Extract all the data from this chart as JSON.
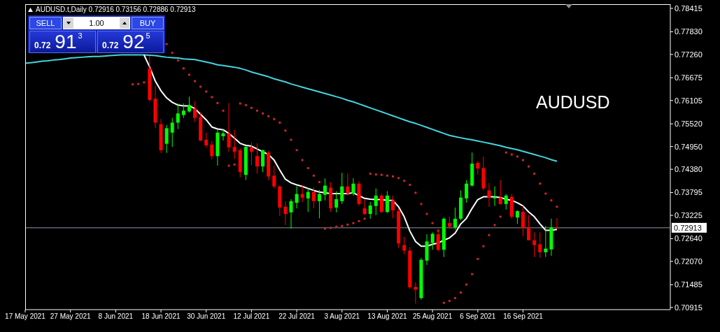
{
  "chart_data": {
    "type": "candlestick",
    "title": "AUDUSD.t,Daily 0.72916 0.73156 0.72886 0.72913",
    "annotations": [
      "AUDUSD",
      "SELL",
      "1.00",
      "BUY",
      "0.72",
      "91$^{3}$",
      "0.72",
      "92$^{5}$"
    ],
    "categories": [
      "17 May 2021",
      null,
      null,
      null,
      null,
      null,
      null,
      null,
      "27 May 2021",
      null,
      null,
      null,
      null,
      null,
      null,
      null,
      "8 Jun 2021",
      null,
      null,
      null,
      null,
      null,
      null,
      null,
      "18 Jun 2021",
      null,
      null,
      null,
      null,
      null,
      null,
      null,
      "30 Jun 2021",
      null,
      null,
      null,
      null,
      null,
      null,
      null,
      "12 Jul 2021",
      null,
      null,
      null,
      null,
      null,
      null,
      null,
      "22 Jul 2021",
      null,
      null,
      null,
      null,
      null,
      null,
      null,
      "3 Aug 2021",
      null,
      null,
      null,
      null,
      null,
      null,
      null,
      "13 Aug 2021",
      null,
      null,
      null,
      null,
      null,
      null,
      null,
      "25 Aug 2021",
      null,
      null,
      null,
      null,
      null,
      null,
      null,
      "6 Sep 2021",
      null,
      null,
      null,
      null,
      null,
      null,
      null,
      "16 Sep 2021",
      null,
      null,
      null,
      null,
      null,
      null
    ],
    "ohlc": [
      null,
      null,
      null,
      null,
      null,
      null,
      null,
      null,
      null,
      null,
      null,
      null,
      null,
      null,
      null,
      null,
      null,
      null,
      null,
      null,
      null,
      null,
      [
        0.7691,
        0.7723,
        0.7608,
        0.7612
      ],
      [
        0.7615,
        0.7647,
        0.7541,
        0.7555
      ],
      [
        0.7551,
        0.7564,
        0.7479,
        0.7486
      ],
      [
        0.7502,
        0.7549,
        0.7479,
        0.7541
      ],
      [
        0.753,
        0.7567,
        0.7494,
        0.7555
      ],
      [
        0.7555,
        0.7603,
        0.7539,
        0.7578
      ],
      [
        0.7574,
        0.7603,
        0.7567,
        0.7585
      ],
      [
        0.7583,
        0.762,
        0.758,
        0.7599
      ],
      [
        0.759,
        0.7608,
        0.7556,
        0.7567
      ],
      [
        0.7569,
        0.7581,
        0.7509,
        0.751
      ],
      [
        0.7512,
        0.753,
        0.7493,
        0.7498
      ],
      [
        0.75,
        0.7509,
        0.7463,
        0.7471
      ],
      [
        0.7471,
        0.7537,
        0.7447,
        0.753
      ],
      [
        0.7521,
        0.7539,
        0.751,
        0.7528
      ],
      [
        0.7528,
        0.7604,
        0.7482,
        0.7493
      ],
      [
        0.7494,
        0.7537,
        0.7464,
        0.7482
      ],
      [
        0.7486,
        0.7491,
        0.7418,
        0.7431
      ],
      [
        0.7424,
        0.7496,
        0.7411,
        0.7494
      ],
      [
        0.7493,
        0.7505,
        0.7448,
        0.7482
      ],
      [
        0.7471,
        0.7503,
        0.7427,
        0.7445
      ],
      [
        0.7445,
        0.7487,
        0.7431,
        0.7486
      ],
      [
        0.748,
        0.7484,
        0.7411,
        0.742
      ],
      [
        0.7422,
        0.7447,
        0.739,
        0.7395
      ],
      [
        0.7395,
        0.7397,
        0.7321,
        0.7342
      ],
      [
        0.7344,
        0.7358,
        0.7298,
        0.7326
      ],
      [
        0.733,
        0.7363,
        0.7289,
        0.7358
      ],
      [
        0.7354,
        0.7395,
        0.734,
        0.7376
      ],
      [
        0.7376,
        0.7399,
        0.7356,
        0.7367
      ],
      [
        0.7365,
        0.739,
        0.7331,
        0.7381
      ],
      [
        0.7381,
        0.7393,
        0.734,
        0.7358
      ],
      [
        0.7358,
        0.7386,
        0.7315,
        0.7376
      ],
      [
        0.7374,
        0.7415,
        0.736,
        0.7397
      ],
      [
        0.7392,
        0.7406,
        0.7331,
        0.734
      ],
      [
        0.7342,
        0.7383,
        0.733,
        0.7363
      ],
      [
        0.7358,
        0.7429,
        0.7351,
        0.7395
      ],
      [
        0.7395,
        0.7427,
        0.7372,
        0.7377
      ],
      [
        0.7377,
        0.7416,
        0.7372,
        0.7402
      ],
      [
        0.7402,
        0.7408,
        0.7346,
        0.7351
      ],
      [
        0.734,
        0.7362,
        0.7323,
        0.7326
      ],
      [
        0.7326,
        0.7356,
        0.7314,
        0.7347
      ],
      [
        0.7346,
        0.739,
        0.7323,
        0.7372
      ],
      [
        0.7372,
        0.7376,
        0.7328,
        0.7331
      ],
      [
        0.7331,
        0.7383,
        0.7328,
        0.7372
      ],
      [
        0.736,
        0.7372,
        0.7315,
        0.7335
      ],
      [
        0.7333,
        0.734,
        0.7241,
        0.7252
      ],
      [
        0.7248,
        0.7269,
        0.7225,
        0.7234
      ],
      [
        0.7234,
        0.7243,
        0.7138,
        0.7142
      ],
      [
        0.7143,
        0.7154,
        0.7101,
        0.7136
      ],
      [
        0.7115,
        0.7216,
        0.7111,
        0.7211
      ],
      [
        0.7209,
        0.7275,
        0.7198,
        0.7257
      ],
      [
        0.7253,
        0.728,
        0.7236,
        0.7276
      ],
      [
        0.7275,
        0.7287,
        0.7232,
        0.7236
      ],
      [
        0.7236,
        0.7317,
        0.7218,
        0.7314
      ],
      [
        0.7303,
        0.7319,
        0.7289,
        0.7294
      ],
      [
        0.7292,
        0.7342,
        0.7287,
        0.7314
      ],
      [
        0.7314,
        0.7385,
        0.731,
        0.7367
      ],
      [
        0.7365,
        0.7411,
        0.7354,
        0.7402
      ],
      [
        0.7397,
        0.748,
        0.7395,
        0.7452
      ],
      [
        0.7454,
        0.7459,
        0.7425,
        0.744
      ],
      [
        0.7441,
        0.747,
        0.7385,
        0.739
      ],
      [
        0.7385,
        0.7404,
        0.7344,
        0.7367
      ],
      [
        0.7365,
        0.7395,
        0.7346,
        0.7369
      ],
      [
        0.7367,
        0.7411,
        0.7349,
        0.7351
      ],
      [
        0.7351,
        0.7376,
        0.7337,
        0.7372
      ],
      [
        0.7369,
        0.7376,
        0.7314,
        0.7319
      ],
      [
        0.7317,
        0.7335,
        0.7301,
        0.7333
      ],
      [
        0.7331,
        0.7346,
        0.7271,
        0.7291
      ],
      [
        0.7292,
        0.7323,
        0.726,
        0.726
      ],
      [
        0.726,
        0.728,
        0.7218,
        0.7248
      ],
      [
        0.725,
        0.728,
        0.7216,
        0.723
      ],
      [
        0.723,
        0.7296,
        0.7218,
        0.7239
      ],
      [
        0.7237,
        0.7314,
        0.7221,
        0.7292
      ],
      [
        0.72916,
        0.73156,
        0.72886,
        0.72913
      ]
    ],
    "colors": [
      null,
      null,
      null,
      null,
      null,
      null,
      null,
      null,
      null,
      null,
      null,
      null,
      null,
      null,
      null,
      null,
      null,
      null,
      null,
      null,
      null,
      null,
      "#ff0000",
      "#ff0000",
      "#ff0000",
      "#00ff00",
      "#00ff00",
      "#00ff00",
      "#00ff00",
      "#00ff00",
      "#ff0000",
      "#ff0000",
      "#ff0000",
      "#ff0000",
      "#00ff00",
      "#00ff00",
      "#ff0000",
      "#ff0000",
      "#ff0000",
      "#00ff00",
      "#ff0000",
      "#ff0000",
      "#00ff00",
      "#ff0000",
      "#ff0000",
      "#ff0000",
      "#ff0000",
      "#00ff00",
      "#00ff00",
      "#ff0000",
      "#00ff00",
      "#ff0000",
      "#00ff00",
      "#00ff00",
      "#ff0000",
      "#00ff00",
      "#00ff00",
      "#ff0000",
      "#00ff00",
      "#ff0000",
      "#ff0000",
      "#00ff00",
      "#00ff00",
      "#ff0000",
      "#00ff00",
      "#ff0000",
      "#ff0000",
      "#ff0000",
      "#ff0000",
      "#ff0000",
      "#00ff00",
      "#00ff00",
      "#00ff00",
      "#ff0000",
      "#00ff00",
      "#ff0000",
      "#00ff00",
      "#00ff00",
      "#00ff00",
      "#00ff00",
      "#ff0000",
      "#ff0000",
      "#ff0000",
      "#00ff00",
      "#ff0000",
      "#00ff00",
      "#ff0000",
      "#00ff00",
      "#ff0000",
      "#ff0000",
      "#ff0000",
      "#ff0000",
      "#00ff00",
      "#00ff00",
      "#ff0000"
    ],
    "series": [
      {
        "type": "line",
        "color": "#45d4e0",
        "values": [
          0.7704,
          0.7705,
          0.7707,
          0.7709,
          0.771,
          0.7712,
          0.7713,
          0.7715,
          0.7717,
          0.7718,
          0.7719,
          0.772,
          0.7721,
          0.7721,
          0.7722,
          0.7723,
          0.7724,
          0.7725,
          0.7725,
          0.7725,
          0.7725,
          0.7725,
          0.7724,
          0.7723,
          0.7721,
          0.7719,
          0.7718,
          0.7717,
          0.7715,
          0.7714,
          0.7713,
          0.771,
          0.7707,
          0.7704,
          0.77,
          0.7698,
          0.7696,
          0.7694,
          0.7691,
          0.7687,
          0.7682,
          0.7678,
          0.7674,
          0.767,
          0.7665,
          0.7661,
          0.7657,
          0.7652,
          0.7648,
          0.7644,
          0.764,
          0.7636,
          0.7632,
          0.7628,
          0.7624,
          0.762,
          0.7616,
          0.7611,
          0.7607,
          0.7602,
          0.7597,
          0.7592,
          0.7587,
          0.7582,
          0.7577,
          0.7572,
          0.7567,
          0.7562,
          0.7557,
          0.7553,
          0.7548,
          0.7543,
          0.7538,
          0.7533,
          0.7528,
          0.7523,
          0.752,
          0.7517,
          0.7514,
          0.7512,
          0.7509,
          0.7506,
          0.7503,
          0.75,
          0.7497,
          0.7493,
          0.749,
          0.7487,
          0.7483,
          0.7479,
          0.7475,
          0.7471,
          0.7467,
          0.7462,
          0.7458
        ]
      },
      {
        "type": "line",
        "color": "#ffffff",
        "values": [
          null,
          null,
          null,
          null,
          null,
          null,
          null,
          null,
          null,
          null,
          null,
          null,
          null,
          null,
          null,
          null,
          null,
          null,
          null,
          null,
          null,
          0.7725,
          0.7695,
          0.7659,
          0.7635,
          0.7617,
          0.7606,
          0.7599,
          0.7597,
          0.7597,
          0.759,
          0.7576,
          0.7562,
          0.7544,
          0.7539,
          0.7537,
          0.7528,
          0.7516,
          0.7503,
          0.7498,
          0.7496,
          0.7489,
          0.7482,
          0.7475,
          0.7461,
          0.7436,
          0.7413,
          0.7404,
          0.7399,
          0.7395,
          0.739,
          0.7385,
          0.7381,
          0.7379,
          0.7377,
          0.7377,
          0.7377,
          0.7377,
          0.7379,
          0.7372,
          0.7365,
          0.7363,
          0.7362,
          0.7362,
          0.736,
          0.736,
          0.7344,
          0.7319,
          0.7283,
          0.7257,
          0.7245,
          0.7245,
          0.725,
          0.7253,
          0.726,
          0.7266,
          0.7278,
          0.7301,
          0.7315,
          0.734,
          0.7362,
          0.7369,
          0.7369,
          0.7369,
          0.7367,
          0.7363,
          0.736,
          0.7354,
          0.7346,
          0.7331,
          0.7319,
          0.7301,
          0.7285,
          0.7285,
          0.7287
        ]
      },
      {
        "type": "scatter",
        "color": "#c8262a",
        "marker": "square",
        "values": [
          null,
          null,
          null,
          null,
          null,
          null,
          null,
          null,
          null,
          null,
          null,
          null,
          null,
          null,
          null,
          null,
          null,
          null,
          null,
          0.7651,
          0.7652,
          0.7656,
          null,
          null,
          null,
          0.7752,
          0.773,
          0.7711,
          0.7691,
          0.7675,
          0.7659,
          0.7645,
          0.7633,
          0.7619,
          0.7604,
          0.7585,
          0.7447,
          0.745,
          0.7603,
          0.7599,
          0.7592,
          0.7585,
          0.7578,
          0.7571,
          0.7564,
          0.7555,
          0.7535,
          0.7512,
          0.7486,
          0.7461,
          0.7441,
          0.7422,
          0.7406,
          0.7289,
          0.7291,
          0.7294,
          0.7296,
          0.7299,
          0.7303,
          0.7308,
          0.7314,
          0.7427,
          0.7425,
          0.7424,
          0.7422,
          0.742,
          0.7416,
          0.7409,
          0.7399,
          0.7379,
          0.7351,
          0.7326,
          0.7303,
          0.7284,
          0.7103,
          0.7108,
          0.7115,
          0.7129,
          0.7149,
          0.7175,
          0.7213,
          0.7245,
          0.7273,
          0.7298,
          0.7319,
          0.748,
          0.7475,
          0.747,
          0.7461,
          0.7445,
          0.7427,
          0.7402,
          0.7377,
          0.736,
          0.7344
        ]
      }
    ],
    "ylim": [
      0.7086,
      0.7852
    ],
    "yticks": [
      0.78415,
      {
        "value": 0.7783,
        "label": "0.77830"
      },
      {
        "value": 0.7726,
        "label": "0.77260"
      },
      0.76675,
      0.76105,
      {
        "value": 0.7552,
        "label": "0.75520"
      },
      {
        "value": 0.7495,
        "label": "0.74950"
      },
      {
        "value": 0.7438,
        "label": "0.74380"
      },
      0.73795,
      0.73225,
      {
        "value": 0.7264,
        "label": "0.72640"
      },
      {
        "value": 0.7207,
        "label": "0.72070"
      },
      0.71485,
      0.70915
    ],
    "ref_lines": [
      {
        "axis": "y",
        "value": 0.72913,
        "label": "0.72913",
        "color": "#8c96a8"
      }
    ]
  }
}
